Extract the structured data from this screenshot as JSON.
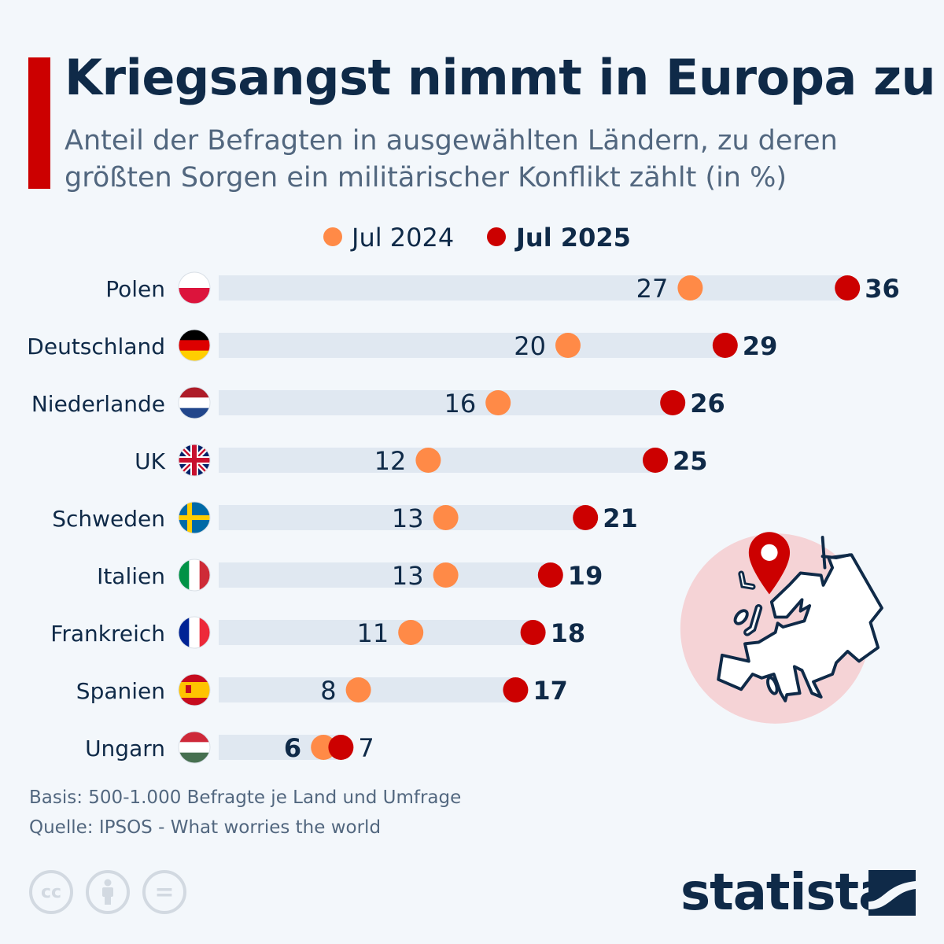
{
  "title": "Kriegsangst nimmt in Europa zu",
  "subtitle": "Anteil der Befragten in ausgewählten Ländern, zu deren größten Sorgen ein militärischer Konflikt zählt (in %)",
  "chart_data": {
    "type": "dumbbell",
    "title": "Kriegsangst nimmt in Europa zu",
    "legend_position": "top-center",
    "categories": [
      "Polen",
      "Deutschland",
      "Niederlande",
      "UK",
      "Schweden",
      "Italien",
      "Frankreich",
      "Spanien",
      "Ungarn"
    ],
    "series": [
      {
        "name": "Jul 2024",
        "color": "#ff8a47",
        "values": [
          27,
          20,
          16,
          12,
          13,
          13,
          11,
          8,
          6
        ]
      },
      {
        "name": "Jul 2025",
        "color": "#cc0000",
        "values": [
          36,
          29,
          26,
          25,
          21,
          19,
          18,
          17,
          7
        ]
      }
    ],
    "xlim": [
      0,
      36
    ],
    "grid": false,
    "flags": [
      "poland-flag-icon",
      "germany-flag-icon",
      "netherlands-flag-icon",
      "uk-flag-icon",
      "sweden-flag-icon",
      "italy-flag-icon",
      "france-flag-icon",
      "spain-flag-icon",
      "hungary-flag-icon"
    ]
  },
  "colors": {
    "bar_track": "#e0e8f1",
    "accent": "#cc0000",
    "text": "#0f2a48"
  },
  "footer": {
    "basis": "Basis: 500-1.000 Befragte je Land und Umfrage",
    "source": "Quelle: IPSOS - What worries the world"
  },
  "license_icons": [
    "cc-icon",
    "attribution-icon",
    "no-derivatives-icon"
  ],
  "license_glyphs": {
    "cc": "cc",
    "nd": "="
  },
  "brand": "statista",
  "illustration": "europe-map-pin-icon"
}
